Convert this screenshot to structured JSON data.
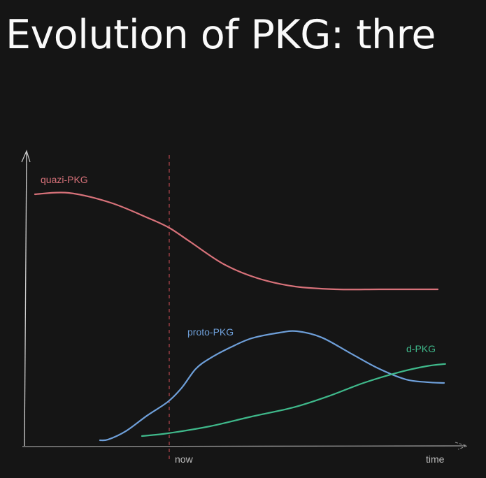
{
  "slide": {
    "title": "Evolution of PKG: thre"
  },
  "chart_data": {
    "type": "line",
    "title": "Evolution of PKG: thre",
    "xlabel": "time",
    "ylabel": "",
    "xlim": [
      0,
      103
    ],
    "ylim": [
      0,
      105
    ],
    "grid": false,
    "annotations": [
      {
        "label": "now",
        "x": 35,
        "style": "dashed vertical line",
        "color": "#b4464c"
      }
    ],
    "series": [
      {
        "name": "quazi-PKG",
        "color": "#d8727a",
        "points": [
          [
            3,
            90
          ],
          [
            11,
            90.5
          ],
          [
            21,
            87
          ],
          [
            30,
            81.5
          ],
          [
            35,
            78
          ],
          [
            40,
            73
          ],
          [
            48,
            65
          ],
          [
            56,
            60
          ],
          [
            65,
            57
          ],
          [
            75,
            56
          ],
          [
            85,
            56
          ],
          [
            95,
            56
          ],
          [
            99,
            56
          ]
        ]
      },
      {
        "name": "proto-PKG",
        "color": "#6e9fd9",
        "points": [
          [
            18.5,
            2
          ],
          [
            20.5,
            2.3
          ],
          [
            24.7,
            5.3
          ],
          [
            29.7,
            10.8
          ],
          [
            34.7,
            15.8
          ],
          [
            38,
            20.8
          ],
          [
            41.3,
            27.5
          ],
          [
            44.7,
            31.3
          ],
          [
            49.7,
            35.3
          ],
          [
            54.7,
            38.5
          ],
          [
            61.3,
            40.5
          ],
          [
            65.5,
            41
          ],
          [
            71.3,
            38.8
          ],
          [
            78,
            33.3
          ],
          [
            84.7,
            27.8
          ],
          [
            91.3,
            23.8
          ],
          [
            96.3,
            22.8
          ],
          [
            100.5,
            22.5
          ]
        ]
      },
      {
        "name": "d-PKG",
        "color": "#3fb98b",
        "points": [
          [
            28.5,
            3.5
          ],
          [
            34.7,
            4.5
          ],
          [
            44.7,
            7
          ],
          [
            54.7,
            10.5
          ],
          [
            64.7,
            13.8
          ],
          [
            73,
            17.8
          ],
          [
            81.3,
            22.5
          ],
          [
            89.7,
            26.3
          ],
          [
            96.3,
            28.5
          ],
          [
            100.8,
            29.3
          ]
        ]
      }
    ]
  }
}
